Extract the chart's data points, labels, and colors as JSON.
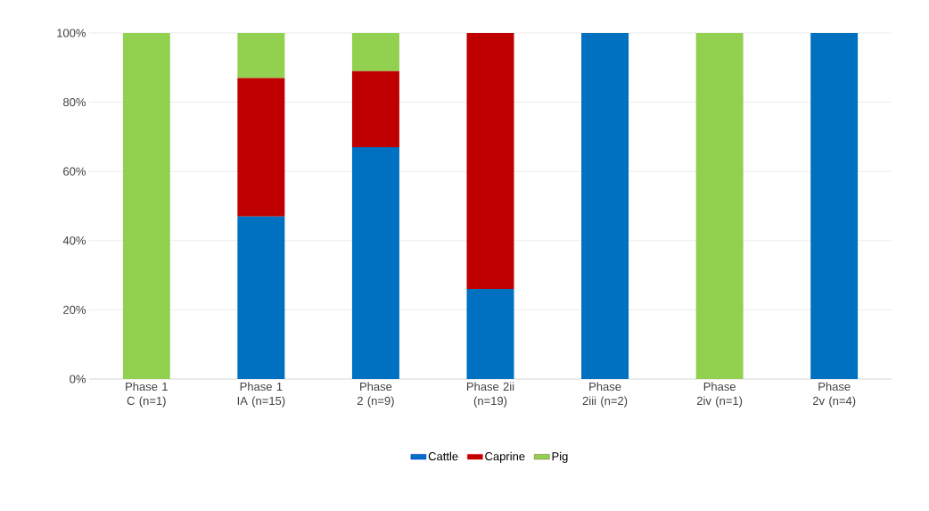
{
  "chart_data": {
    "type": "bar",
    "stacked": true,
    "categories": [
      "Phase 1 C (n=1)",
      "Phase 1 IA (n=15)",
      "Phase 2 (n=9)",
      "Phase 2ii (n=19)",
      "Phase 2iii (n=2)",
      "Phase 2iv (n=1)",
      "Phase 2v (n=4)"
    ],
    "series": [
      {
        "name": "Cattle",
        "color": "#0070c0",
        "values": [
          0,
          47,
          67,
          26,
          100,
          0,
          100
        ]
      },
      {
        "name": "Caprine",
        "color": "#c00000",
        "values": [
          0,
          40,
          22,
          74,
          0,
          0,
          0
        ]
      },
      {
        "name": "Pig",
        "color": "#92d050",
        "values": [
          100,
          13,
          11,
          0,
          0,
          100,
          0
        ]
      }
    ],
    "ylim": [
      0,
      100
    ],
    "yticks": [
      {
        "value": 0,
        "label": "0%"
      },
      {
        "value": 20,
        "label": "20%"
      },
      {
        "value": 40,
        "label": "40%"
      },
      {
        "value": 60,
        "label": "60%"
      },
      {
        "value": 80,
        "label": "80%"
      },
      {
        "value": 100,
        "label": "100%"
      }
    ],
    "grid": "y",
    "legend": "bottom"
  }
}
